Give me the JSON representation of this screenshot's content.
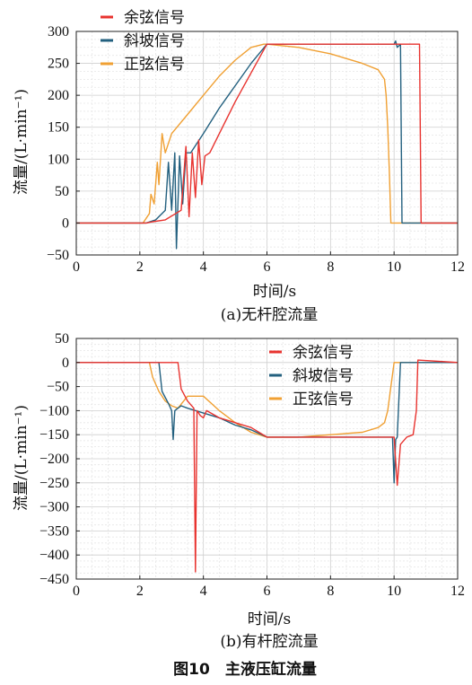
{
  "figure_caption": "图10　主液压缸流量",
  "chart_data": [
    {
      "type": "line",
      "caption": "(a)无杆腔流量",
      "xlabel": "时间/s",
      "ylabel": "流量/(L·min⁻¹)",
      "xlim": [
        0,
        12
      ],
      "ylim": [
        -50,
        300
      ],
      "xticks": [
        0,
        2,
        4,
        6,
        8,
        10,
        12
      ],
      "yticks": [
        -50,
        0,
        50,
        100,
        150,
        200,
        250,
        300
      ],
      "grid": true,
      "legend_position": "top-left",
      "series": [
        {
          "name": "余弦信号",
          "color": "#e8332f",
          "x": [
            0,
            2.2,
            2.4,
            2.8,
            3.3,
            3.45,
            3.55,
            3.65,
            3.75,
            3.85,
            3.95,
            4.05,
            4.2,
            4.5,
            5.0,
            5.5,
            6.0,
            7.0,
            8.0,
            9.0,
            10.0,
            10.5,
            10.7,
            10.8,
            10.85,
            12
          ],
          "y": [
            0,
            0,
            2,
            5,
            20,
            120,
            10,
            110,
            40,
            130,
            60,
            105,
            110,
            140,
            190,
            235,
            280,
            280,
            280,
            280,
            280,
            280,
            280,
            280,
            0,
            0
          ]
        },
        {
          "name": "斜坡信号",
          "color": "#23607f",
          "x": [
            0,
            2.2,
            2.5,
            2.8,
            2.9,
            3.0,
            3.1,
            3.15,
            3.25,
            3.35,
            3.45,
            3.6,
            3.8,
            4.0,
            4.5,
            5.0,
            5.5,
            6.0,
            7.0,
            8.0,
            9.0,
            10.0,
            10.05,
            10.1,
            10.2,
            10.25,
            12
          ],
          "y": [
            0,
            0,
            5,
            20,
            95,
            20,
            110,
            -40,
            105,
            30,
            110,
            110,
            125,
            140,
            180,
            215,
            250,
            280,
            280,
            280,
            280,
            280,
            285,
            275,
            280,
            0,
            0
          ]
        },
        {
          "name": "正弦信号",
          "color": "#f0a033",
          "x": [
            0,
            2.1,
            2.3,
            2.35,
            2.45,
            2.55,
            2.6,
            2.7,
            2.8,
            3.0,
            3.5,
            4.0,
            4.5,
            5.0,
            5.5,
            5.9,
            6.0,
            7.0,
            8.0,
            9.0,
            9.5,
            9.7,
            9.75,
            9.8,
            9.85,
            9.9,
            10.0,
            12
          ],
          "y": [
            0,
            0,
            15,
            45,
            30,
            95,
            60,
            140,
            110,
            140,
            170,
            200,
            230,
            255,
            275,
            280,
            280,
            275,
            265,
            250,
            240,
            225,
            200,
            150,
            80,
            0,
            0,
            0
          ]
        }
      ]
    },
    {
      "type": "line",
      "caption": "(b)有杆腔流量",
      "xlabel": "时间/s",
      "ylabel": "流量/(L·min⁻¹)",
      "xlim": [
        0,
        12
      ],
      "ylim": [
        -450,
        50
      ],
      "xticks": [
        0,
        2,
        4,
        6,
        8,
        10,
        12
      ],
      "yticks": [
        50,
        0,
        -50,
        -100,
        -150,
        -200,
        -250,
        -300,
        -350,
        -400,
        -450
      ],
      "grid": true,
      "legend_position": "top-right",
      "series": [
        {
          "name": "余弦信号",
          "color": "#e8332f",
          "x": [
            0,
            3.2,
            3.3,
            3.5,
            3.7,
            3.75,
            3.8,
            3.9,
            4.0,
            4.1,
            4.5,
            5.0,
            5.5,
            6.0,
            7.0,
            8.0,
            9.0,
            10.0,
            10.1,
            10.2,
            10.4,
            10.6,
            10.7,
            10.75,
            12
          ],
          "y": [
            0,
            0,
            -55,
            -80,
            -95,
            -435,
            -100,
            -110,
            -115,
            -100,
            -115,
            -125,
            -135,
            -155,
            -155,
            -155,
            -155,
            -155,
            -255,
            -170,
            -155,
            -150,
            -100,
            5,
            0
          ]
        },
        {
          "name": "斜坡信号",
          "color": "#23607f",
          "x": [
            0,
            2.6,
            2.7,
            2.9,
            3.0,
            3.05,
            3.1,
            3.2,
            3.3,
            3.5,
            4.0,
            4.5,
            5.0,
            5.5,
            6.0,
            7.0,
            8.0,
            9.0,
            9.95,
            10.0,
            10.05,
            10.1,
            10.2,
            10.3,
            12
          ],
          "y": [
            0,
            0,
            -60,
            -85,
            -100,
            -160,
            -100,
            -95,
            -90,
            -95,
            -105,
            -115,
            -130,
            -140,
            -155,
            -155,
            -155,
            -155,
            -155,
            -250,
            -160,
            -155,
            0,
            0,
            0
          ]
        },
        {
          "name": "正弦信号",
          "color": "#f0a033",
          "x": [
            0,
            2.3,
            2.4,
            2.6,
            2.8,
            3.0,
            3.2,
            3.5,
            4.0,
            4.5,
            5.0,
            5.5,
            6.0,
            7.0,
            8.0,
            9.0,
            9.5,
            9.7,
            9.8,
            9.9,
            10.0,
            12
          ],
          "y": [
            0,
            0,
            -30,
            -60,
            -80,
            -90,
            -95,
            -70,
            -70,
            -100,
            -125,
            -145,
            -155,
            -155,
            -150,
            -145,
            -135,
            -125,
            -100,
            -50,
            0,
            0
          ]
        }
      ]
    }
  ]
}
